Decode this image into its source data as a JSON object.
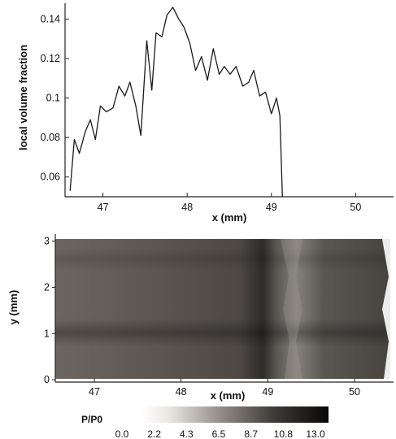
{
  "chart_data": [
    {
      "type": "line",
      "title": "",
      "xlabel": "x (mm)",
      "ylabel": "local volume fraction",
      "xlim": [
        46.55,
        50.45
      ],
      "ylim": [
        0.05,
        0.148
      ],
      "xticks": [
        "47",
        "48",
        "49",
        "50"
      ],
      "yticks": [
        "0.06",
        "0.08",
        "0.1",
        "0.12",
        "0.14"
      ],
      "grid": false,
      "series": [
        {
          "x": [
            46.61,
            46.66,
            46.72,
            46.79,
            46.85,
            46.91,
            46.97,
            47.04,
            47.12,
            47.19,
            47.26,
            47.32,
            47.39,
            47.45,
            47.52,
            47.58,
            47.63,
            47.7,
            47.76,
            47.83,
            47.9,
            47.96,
            48.03,
            48.1,
            48.17,
            48.24,
            48.31,
            48.38,
            48.44,
            48.51,
            48.58,
            48.66,
            48.73,
            48.79,
            48.86,
            48.93,
            49.0,
            49.06,
            49.1,
            49.13
          ],
          "values": [
            0.053,
            0.079,
            0.072,
            0.083,
            0.089,
            0.079,
            0.096,
            0.093,
            0.095,
            0.106,
            0.101,
            0.108,
            0.096,
            0.081,
            0.129,
            0.104,
            0.133,
            0.131,
            0.142,
            0.146,
            0.14,
            0.136,
            0.128,
            0.114,
            0.121,
            0.109,
            0.125,
            0.112,
            0.116,
            0.112,
            0.116,
            0.106,
            0.108,
            0.114,
            0.101,
            0.103,
            0.092,
            0.1,
            0.091,
            0.05
          ]
        }
      ]
    },
    {
      "type": "heatmap",
      "title": "",
      "xlabel": "x (mm)",
      "ylabel": "y (mm)",
      "xlim": [
        46.55,
        50.45
      ],
      "ylim": [
        -0.05,
        3.15
      ],
      "xticks": [
        "47",
        "48",
        "49",
        "50"
      ],
      "yticks": [
        "0",
        "1",
        "2",
        "3"
      ],
      "colorbar": {
        "label": "P/P0",
        "ticks": [
          "0.0",
          "2.2",
          "4.3",
          "6.5",
          "8.7",
          "10.8",
          "13.0"
        ],
        "colors": [
          "#ffffff",
          "#000000"
        ]
      }
    }
  ]
}
